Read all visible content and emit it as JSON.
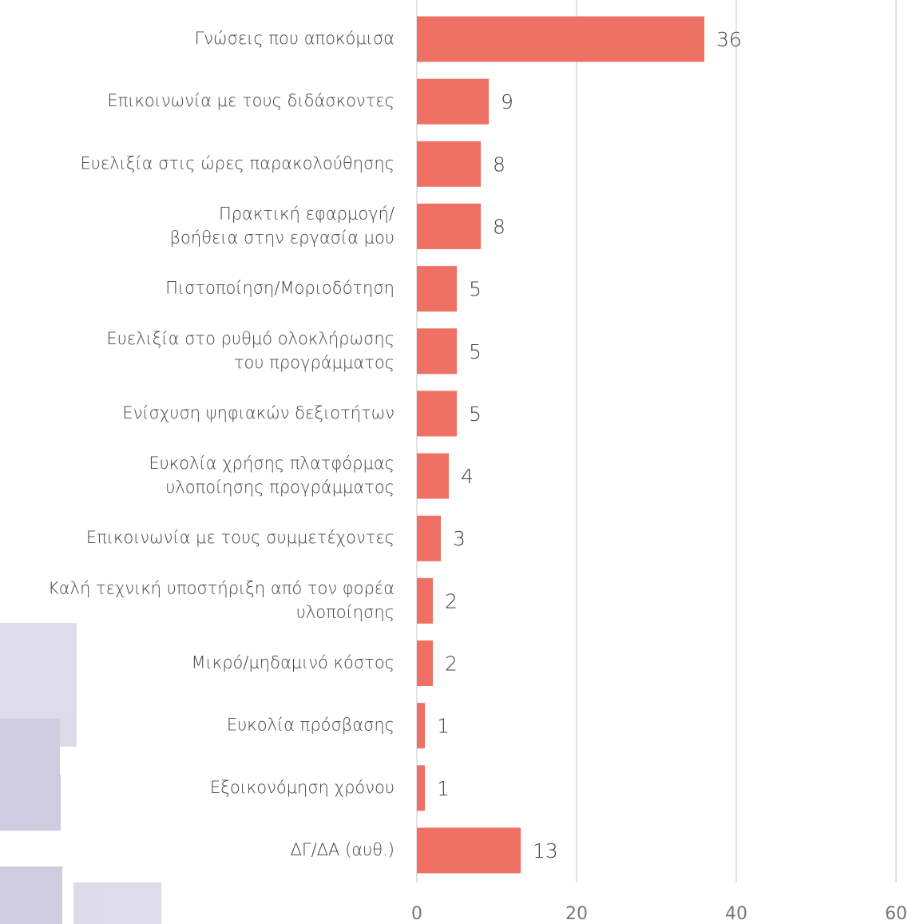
{
  "chart_data": {
    "type": "bar",
    "orientation": "horizontal",
    "categories": [
      [
        "Γνώσεις που αποκόμισα"
      ],
      [
        "Επικοινωνία με τους διδάσκοντες"
      ],
      [
        "Ευελιξία στις ώρες παρακολούθησης"
      ],
      [
        "Πρακτική εφαρμογή/",
        "βοήθεια στην εργασία μου"
      ],
      [
        "Πιστοποίηση/Μοριοδότηση"
      ],
      [
        "Ευελιξία στο ρυθμό ολοκλήρωσης",
        "του προγράμματος"
      ],
      [
        "Ενίσχυση ψηφιακών δεξιοτήτων"
      ],
      [
        "Ευκολία χρήσης πλατφόρμας",
        "υλοποίησης προγράμματος"
      ],
      [
        "Επικοινωνία με τους συμμετέχοντες"
      ],
      [
        "Καλή τεχνική υποστήριξη από τον φορέα",
        "υλοποίησης"
      ],
      [
        "Μικρό/μηδαμινό κόστος"
      ],
      [
        "Ευκολία πρόσβασης"
      ],
      [
        "Εξοικονόμηση χρόνου"
      ],
      [
        "ΔΓ/ΔΑ (αυθ.)"
      ]
    ],
    "values": [
      36,
      9,
      8,
      8,
      5,
      5,
      5,
      4,
      3,
      2,
      2,
      1,
      1,
      13
    ],
    "color": "#ef7064",
    "xlim": [
      0,
      60
    ],
    "xticks": [
      0,
      20,
      40,
      60
    ],
    "grid": true
  }
}
